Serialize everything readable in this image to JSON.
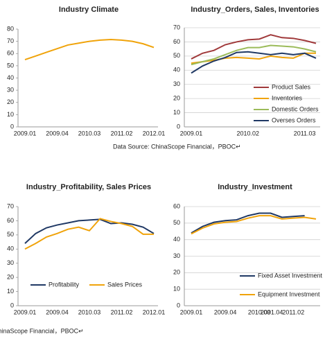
{
  "chart_data": [
    {
      "type": "line",
      "title": "Industry Climate",
      "categories": [
        "2009.01",
        null,
        null,
        "2009.04",
        null,
        null,
        "2010.03",
        null,
        null,
        "2011.02",
        null,
        null,
        "2012.01"
      ],
      "series": [
        {
          "name": "Industry Climate",
          "color": "#f0a30a",
          "values": [
            55,
            58,
            61,
            64,
            67,
            68.5,
            70,
            71,
            71.5,
            71,
            70,
            68,
            65
          ]
        }
      ],
      "ylim": [
        0,
        80
      ],
      "yticks": [
        0,
        10,
        20,
        30,
        40,
        50,
        60,
        70,
        80
      ],
      "grid": false,
      "legend": "none"
    },
    {
      "type": "line",
      "title": "Industry_Orders, Sales, Inventories",
      "categories": [
        "2009.01",
        null,
        null,
        null,
        null,
        "2010.02",
        null,
        null,
        null,
        null,
        "2011.03",
        null
      ],
      "series": [
        {
          "name": "Product Sales",
          "color": "#a0393a",
          "values": [
            48,
            52,
            54,
            58,
            60,
            61.5,
            62,
            65,
            63,
            62.5,
            61,
            59
          ]
        },
        {
          "name": "Inventories",
          "color": "#f0a30a",
          "values": [
            45,
            46,
            47,
            48.5,
            49,
            48.5,
            48,
            50,
            49,
            48.5,
            52,
            52
          ]
        },
        {
          "name": "Domestic Orders",
          "color": "#9bbb59",
          "values": [
            44,
            46,
            48,
            51,
            54,
            56,
            56,
            57.5,
            57,
            56.5,
            55,
            53
          ]
        },
        {
          "name": "Overses Orders",
          "color": "#1f3864",
          "values": [
            38,
            43,
            46.5,
            49,
            52.5,
            53,
            52,
            51,
            52,
            51,
            52,
            48.5
          ]
        }
      ],
      "ylim": [
        0,
        70
      ],
      "yticks": [
        0,
        10,
        20,
        30,
        40,
        50,
        60,
        70
      ],
      "grid": true,
      "legend": "lower right",
      "source": "Data Source: ChinaScope Financial，PBOC↵"
    },
    {
      "type": "line",
      "title": "Industry_Profitability, Sales Prices",
      "categories": [
        "2009.01",
        null,
        null,
        "2009.04",
        null,
        null,
        "2010.03",
        null,
        null,
        "2011.02",
        null,
        null,
        "2012.01"
      ],
      "series": [
        {
          "name": "Profitability",
          "color": "#1f3864",
          "values": [
            44,
            51,
            55,
            57,
            58.5,
            60,
            60.5,
            61,
            58,
            58.5,
            57.5,
            55.5,
            51
          ]
        },
        {
          "name": "Sales Prices",
          "color": "#f0a30a",
          "values": [
            40,
            44,
            48.5,
            51,
            54,
            55.5,
            53,
            61.5,
            59.5,
            58,
            56,
            50.5,
            50.5
          ]
        }
      ],
      "ylim": [
        0,
        70
      ],
      "yticks": [
        0,
        10,
        20,
        30,
        40,
        50,
        60,
        70
      ],
      "grid": false,
      "legend": "center",
      "source": "Data Source: ChinaScope Financial，PBOC↵"
    },
    {
      "type": "line",
      "title": "Industry_Investment",
      "categories": [
        "2009.01",
        null,
        null,
        "2009.04",
        null,
        null,
        "2010.03",
        null,
        null,
        "2011.02",
        null,
        null
      ],
      "series": [
        {
          "name": "Fixed Asset Investment",
          "color": "#1f3864",
          "values": [
            44,
            48,
            50.5,
            51.5,
            52,
            54.5,
            56,
            56,
            53.5,
            54,
            54.5,
            null
          ]
        },
        {
          "name": "Equipment Investment",
          "color": "#f0a30a",
          "values": [
            43.5,
            47,
            49.5,
            50.5,
            51,
            53,
            54.5,
            54.5,
            52.5,
            53,
            53.5,
            52.5
          ]
        }
      ],
      "ylim": [
        0,
        60
      ],
      "yticks": [
        0,
        10,
        20,
        30,
        40,
        50,
        60
      ],
      "grid": true,
      "legend": "right",
      "annotations": [
        "2001.04"
      ]
    }
  ]
}
